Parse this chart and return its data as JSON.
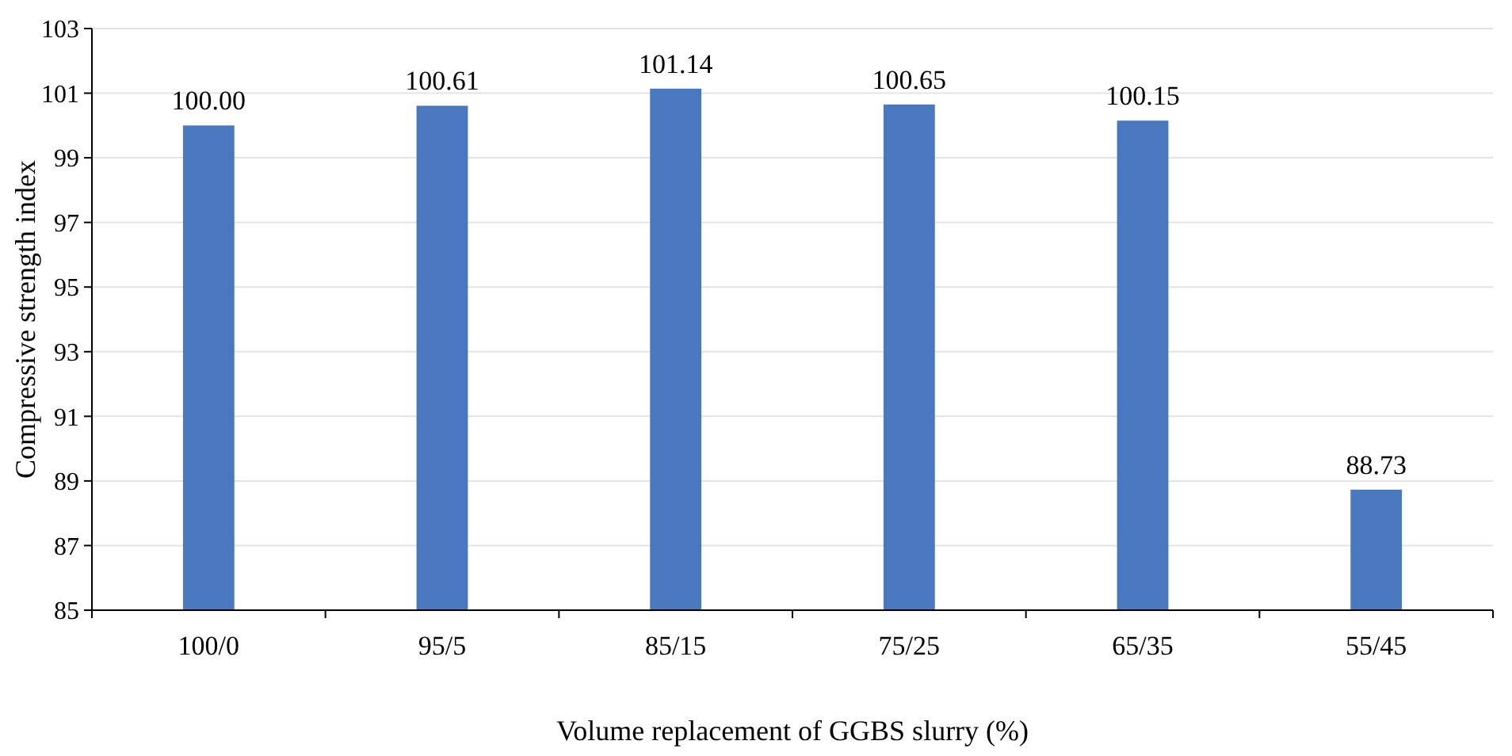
{
  "chart_data": {
    "type": "bar",
    "xlabel": "Volume replacement of GGBS slurry (%)",
    "ylabel": "Compressive strength index",
    "categories": [
      "100/0",
      "95/5",
      "85/15",
      "75/25",
      "65/35",
      "55/45"
    ],
    "values": [
      100.0,
      100.61,
      101.14,
      100.65,
      100.15,
      88.73
    ],
    "value_labels": [
      "100.00",
      "100.61",
      "101.14",
      "100.65",
      "100.15",
      "88.73"
    ],
    "color": "#4a78bf",
    "ylim": [
      85,
      103
    ],
    "yticks": [
      85,
      87,
      89,
      91,
      93,
      95,
      97,
      99,
      101,
      103
    ],
    "grid": "y"
  }
}
